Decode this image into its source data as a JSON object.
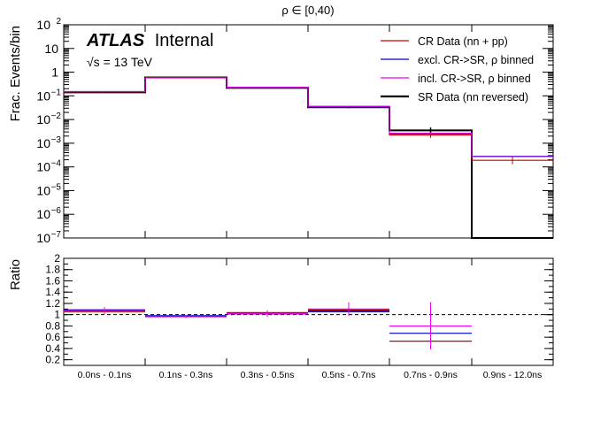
{
  "page": {
    "title": "ρ ∈ [0,40)"
  },
  "atlas": {
    "brand": "ATLAS",
    "label": "Internal",
    "energy": "√s = 13 TeV"
  },
  "colors": {
    "cr_data": "#cc0000",
    "excl": "#0000cc",
    "incl": "#ee00ee",
    "sr_data": "#000000"
  },
  "chart_data": [
    {
      "type": "step-histogram",
      "panel": "main",
      "title": "ρ ∈ [0,40)",
      "ylabel": "Frac. Events/bin",
      "yscale": "log",
      "ylim": [
        1e-07,
        100
      ],
      "y_ticks": [
        {
          "v": 1e-07,
          "label": "10",
          "exp": "−7"
        },
        {
          "v": 1e-06,
          "label": "10",
          "exp": "−6"
        },
        {
          "v": 1e-05,
          "label": "10",
          "exp": "−5"
        },
        {
          "v": 0.0001,
          "label": "10",
          "exp": "−4"
        },
        {
          "v": 0.001,
          "label": "10",
          "exp": "−3"
        },
        {
          "v": 0.01,
          "label": "10",
          "exp": "−2"
        },
        {
          "v": 0.1,
          "label": "10",
          "exp": "−1"
        },
        {
          "v": 1,
          "label": "1",
          "exp": ""
        },
        {
          "v": 10,
          "label": "10",
          "exp": ""
        },
        {
          "v": 100,
          "label": "10",
          "exp": "2"
        }
      ],
      "categories": [
        "0.0ns - 0.1ns",
        "0.1ns - 0.3ns",
        "0.3ns - 0.5ns",
        "0.5ns - 0.7ns",
        "0.7ns - 0.9ns",
        "0.9ns - 12.0ns"
      ],
      "legend_position": "top-right",
      "series": [
        {
          "name": "CR Data (nn + pp)",
          "key": "cr",
          "values": [
            0.148,
            0.57,
            0.225,
            0.036,
            0.0022,
            0.00019
          ],
          "err_lo": [
            0.14,
            0.55,
            0.215,
            0.034,
            0.0017,
            0.00013
          ],
          "err_hi": [
            0.156,
            0.59,
            0.235,
            0.038,
            0.0027,
            0.00026
          ]
        },
        {
          "name": "excl. CR->SR, ρ binned",
          "key": "excl",
          "values": [
            0.152,
            0.585,
            0.228,
            0.035,
            0.00245,
            0.00028
          ]
        },
        {
          "name": "incl. CR->SR, ρ binned",
          "key": "incl",
          "values": [
            0.15,
            0.58,
            0.23,
            0.036,
            0.00265,
            0.00027
          ]
        },
        {
          "name": "SR Data (nn reversed)",
          "key": "sr",
          "values": [
            0.14,
            0.6,
            0.215,
            0.033,
            0.0035,
            1e-07
          ],
          "err_lo": [
            0.137,
            0.59,
            0.21,
            0.03,
            0.0026,
            1e-07
          ],
          "err_hi": [
            0.143,
            0.61,
            0.22,
            0.036,
            0.0046,
            1e-07
          ]
        }
      ]
    },
    {
      "type": "ratio",
      "panel": "ratio",
      "ylabel": "Ratio",
      "ylim": [
        0.1,
        2
      ],
      "y_ticks": [
        "0.2",
        "0.4",
        "0.6",
        "0.8",
        "1",
        "1.2",
        "1.4",
        "1.6",
        "1.8",
        "2"
      ],
      "reference_line": 1,
      "categories": [
        "0.0ns - 0.1ns",
        "0.1ns - 0.3ns",
        "0.3ns - 0.5ns",
        "0.5ns - 0.7ns",
        "0.7ns - 0.9ns",
        "0.9ns - 12.0ns"
      ],
      "series": [
        {
          "key": "cr",
          "values": [
            1.06,
            0.97,
            1.03,
            1.09,
            0.53,
            null
          ],
          "err": [
            0.01,
            0.01,
            0.01,
            0.02,
            0.02,
            null
          ]
        },
        {
          "key": "excl",
          "values": [
            1.08,
            0.975,
            1.02,
            1.06,
            0.67,
            null
          ],
          "err": [
            0.05,
            0.02,
            0.04,
            0.06,
            0.15,
            null
          ]
        },
        {
          "key": "incl",
          "values": [
            1.07,
            0.965,
            1.02,
            1.1,
            0.8,
            null
          ],
          "err": [
            0.06,
            0.03,
            0.06,
            0.12,
            0.42,
            null
          ]
        }
      ]
    }
  ]
}
